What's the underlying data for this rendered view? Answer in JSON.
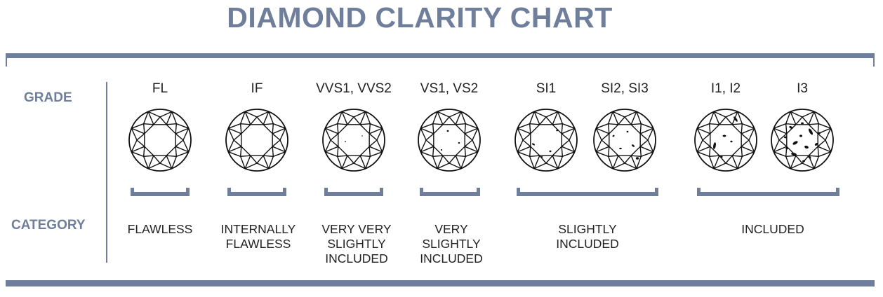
{
  "title": "DIAMOND CLARITY CHART",
  "labels": {
    "grade": "GRADE",
    "category": "CATEGORY"
  },
  "grades": [
    "FL",
    "IF",
    "VVS1, VVS2",
    "VS1, VS2",
    "SI1",
    "SI2, SI3",
    "I1,  I2",
    "I3"
  ],
  "categories": [
    "FLAWLESS",
    "INTERNALLY\nFLAWLESS",
    "VERY VERY\nSLIGHTLY\nINCLUDED",
    "VERY\nSLIGHTLY\nINCLUDED",
    "SLIGHTLY\nINCLUDED",
    "INCLUDED"
  ],
  "colors": {
    "accent": "#6f7e9a",
    "text": "#222222",
    "line": "#111111"
  },
  "icons": [
    "diamond-fl-icon",
    "diamond-if-icon",
    "diamond-vvs-icon",
    "diamond-vs-icon",
    "diamond-si1-icon",
    "diamond-si2-icon",
    "diamond-i1-icon",
    "diamond-i3-icon"
  ]
}
